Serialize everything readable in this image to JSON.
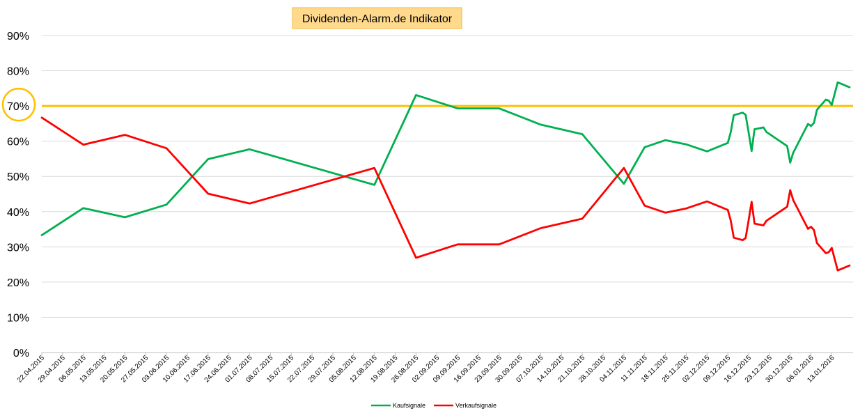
{
  "chart_data": {
    "type": "line",
    "title": "Dividenden-Alarm.de Indikator",
    "ylim": [
      0,
      90
    ],
    "yticks": [
      0,
      10,
      20,
      30,
      40,
      50,
      60,
      70,
      80,
      90
    ],
    "ytick_labels": [
      "0%",
      "10%",
      "20%",
      "30%",
      "40%",
      "50%",
      "60%",
      "70%",
      "80%",
      "90%"
    ],
    "grid": true,
    "legend_position": "bottom-center",
    "x_start": "22.04.2015",
    "x_end": "19.01.2016",
    "x_ticks": [
      "22.04.2015",
      "29.04.2015",
      "06.05.2015",
      "13.05.2015",
      "20.05.2015",
      "27.05.2015",
      "03.06.2015",
      "10.06.2015",
      "17.06.2015",
      "24.06.2015",
      "01.07.2015",
      "08.07.2015",
      "15.07.2015",
      "22.07.2015",
      "29.07.2015",
      "05.08.2015",
      "12.08.2015",
      "19.08.2015",
      "26.08.2015",
      "02.09.2015",
      "09.09.2015",
      "16.09.2015",
      "23.09.2015",
      "30.09.2015",
      "07.10.2015",
      "14.10.2015",
      "21.10.2015",
      "28.10.2015",
      "04.11.2015",
      "11.11.2015",
      "18.11.2015",
      "25.11.2015",
      "02.12.2015",
      "09.12.2015",
      "16.12.2015",
      "23.12.2015",
      "30.12.2015",
      "06.01.2016",
      "13.01.2016"
    ],
    "threshold": {
      "value": 70,
      "color": "#ffc000",
      "label": "70%"
    },
    "series": [
      {
        "name": "Kaufsignale",
        "color": "#00b050",
        "points": [
          [
            "22.04.2015",
            33.3
          ],
          [
            "06.05.2015",
            41.0
          ],
          [
            "20.05.2015",
            38.4
          ],
          [
            "03.06.2015",
            42.0
          ],
          [
            "17.06.2015",
            54.9
          ],
          [
            "01.07.2015",
            57.7
          ],
          [
            "12.08.2015",
            47.6
          ],
          [
            "26.08.2015",
            73.1
          ],
          [
            "09.09.2015",
            69.3
          ],
          [
            "23.09.2015",
            69.3
          ],
          [
            "07.10.2015",
            64.7
          ],
          [
            "21.10.2015",
            62.0
          ],
          [
            "04.11.2015",
            47.9
          ],
          [
            "11.11.2015",
            58.3
          ],
          [
            "18.11.2015",
            60.3
          ],
          [
            "25.11.2015",
            59.1
          ],
          [
            "02.12.2015",
            57.1
          ],
          [
            "09.12.2015",
            59.5
          ],
          [
            "10.12.2015",
            62.6
          ],
          [
            "11.12.2015",
            67.4
          ],
          [
            "14.12.2015",
            68.1
          ],
          [
            "15.12.2015",
            67.5
          ],
          [
            "16.12.2015",
            62.5
          ],
          [
            "17.12.2015",
            57.2
          ],
          [
            "18.12.2015",
            63.4
          ],
          [
            "21.12.2015",
            63.9
          ],
          [
            "22.12.2015",
            62.6
          ],
          [
            "29.12.2015",
            58.6
          ],
          [
            "30.12.2015",
            53.9
          ],
          [
            "31.12.2015",
            56.7
          ],
          [
            "05.01.2016",
            64.9
          ],
          [
            "06.01.2016",
            64.3
          ],
          [
            "07.01.2016",
            65.2
          ],
          [
            "08.01.2016",
            68.9
          ],
          [
            "11.01.2016",
            71.8
          ],
          [
            "12.01.2016",
            71.5
          ],
          [
            "13.01.2016",
            70.3
          ],
          [
            "15.01.2016",
            76.7
          ],
          [
            "19.01.2016",
            75.3
          ]
        ]
      },
      {
        "name": "Verkaufsignale",
        "color": "#ff0000",
        "points": [
          [
            "22.04.2015",
            66.7
          ],
          [
            "06.05.2015",
            59.0
          ],
          [
            "20.05.2015",
            61.8
          ],
          [
            "03.06.2015",
            58.0
          ],
          [
            "17.06.2015",
            45.1
          ],
          [
            "01.07.2015",
            42.3
          ],
          [
            "12.08.2015",
            52.4
          ],
          [
            "26.08.2015",
            26.9
          ],
          [
            "09.09.2015",
            30.7
          ],
          [
            "23.09.2015",
            30.7
          ],
          [
            "07.10.2015",
            35.3
          ],
          [
            "21.10.2015",
            38.0
          ],
          [
            "04.11.2015",
            52.4
          ],
          [
            "11.11.2015",
            41.7
          ],
          [
            "18.11.2015",
            39.7
          ],
          [
            "25.11.2015",
            40.9
          ],
          [
            "02.12.2015",
            42.9
          ],
          [
            "09.12.2015",
            40.5
          ],
          [
            "10.12.2015",
            37.4
          ],
          [
            "11.12.2015",
            32.6
          ],
          [
            "14.12.2015",
            31.9
          ],
          [
            "15.12.2015",
            32.5
          ],
          [
            "16.12.2015",
            37.5
          ],
          [
            "17.12.2015",
            42.8
          ],
          [
            "18.12.2015",
            36.6
          ],
          [
            "21.12.2015",
            36.1
          ],
          [
            "22.12.2015",
            37.4
          ],
          [
            "29.12.2015",
            41.4
          ],
          [
            "30.12.2015",
            46.1
          ],
          [
            "31.12.2015",
            43.3
          ],
          [
            "05.01.2016",
            35.1
          ],
          [
            "06.01.2016",
            35.7
          ],
          [
            "07.01.2016",
            34.8
          ],
          [
            "08.01.2016",
            31.1
          ],
          [
            "11.01.2016",
            28.2
          ],
          [
            "12.01.2016",
            28.5
          ],
          [
            "13.01.2016",
            29.7
          ],
          [
            "15.01.2016",
            23.3
          ],
          [
            "19.01.2016",
            24.7
          ]
        ]
      }
    ]
  }
}
